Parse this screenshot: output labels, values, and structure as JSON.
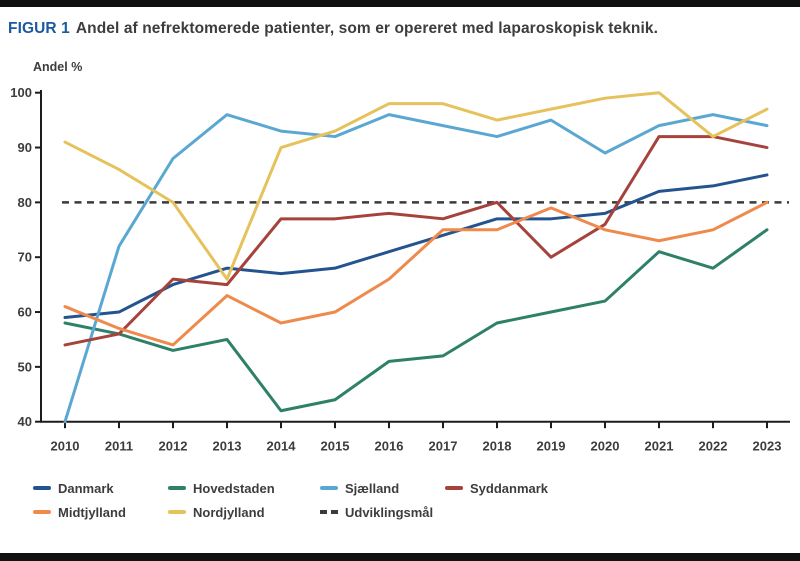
{
  "page": {
    "title_prefix": "FIGUR 1",
    "title_text": "Andel af nefrektomerede patienter, som er opereret med laparoskopisk teknik.",
    "colors": {
      "accent_blue": "#1b5a9e",
      "text": "#3d3d3d",
      "bar_black": "#111111",
      "axis": "#1c1c1c",
      "background": "#ffffff"
    }
  },
  "chart_data": {
    "type": "line",
    "title": "Andel af nefrektomerede patienter, som er opereret med laparoskopisk teknik.",
    "ylabel": "Andel %",
    "xlabel": "",
    "x": [
      2010,
      2011,
      2012,
      2013,
      2014,
      2015,
      2016,
      2017,
      2018,
      2019,
      2020,
      2021,
      2022,
      2023
    ],
    "ylim": [
      40,
      100
    ],
    "yticks": [
      40,
      50,
      60,
      70,
      80,
      90,
      100
    ],
    "grid": false,
    "legend_position": "bottom",
    "target_line": {
      "name": "Udviklingsmål",
      "value": 80,
      "color": "#3b3b3b",
      "dashed": true
    },
    "series": [
      {
        "name": "Danmark",
        "color": "#24548f",
        "values": [
          59,
          60,
          65,
          68,
          67,
          68,
          71,
          74,
          77,
          77,
          78,
          82,
          83,
          85
        ]
      },
      {
        "name": "Hovedstaden",
        "color": "#2e8069",
        "values": [
          58,
          56,
          53,
          55,
          42,
          44,
          51,
          52,
          58,
          60,
          62,
          71,
          68,
          75
        ]
      },
      {
        "name": "Sjælland",
        "color": "#5aa8d2",
        "values": [
          40,
          72,
          88,
          96,
          93,
          92,
          96,
          94,
          92,
          95,
          89,
          94,
          96,
          94
        ]
      },
      {
        "name": "Syddanmark",
        "color": "#a6423c",
        "values": [
          54,
          56,
          66,
          65,
          77,
          77,
          78,
          77,
          80,
          70,
          76,
          92,
          92,
          90
        ]
      },
      {
        "name": "Midtjylland",
        "color": "#ef8a4d",
        "values": [
          61,
          57,
          54,
          63,
          58,
          60,
          66,
          75,
          75,
          79,
          75,
          73,
          75,
          80
        ]
      },
      {
        "name": "Nordjylland",
        "color": "#e6c25d",
        "values": [
          91,
          86,
          80,
          66,
          90,
          93,
          98,
          98,
          95,
          97,
          99,
          100,
          92,
          97
        ]
      }
    ]
  }
}
